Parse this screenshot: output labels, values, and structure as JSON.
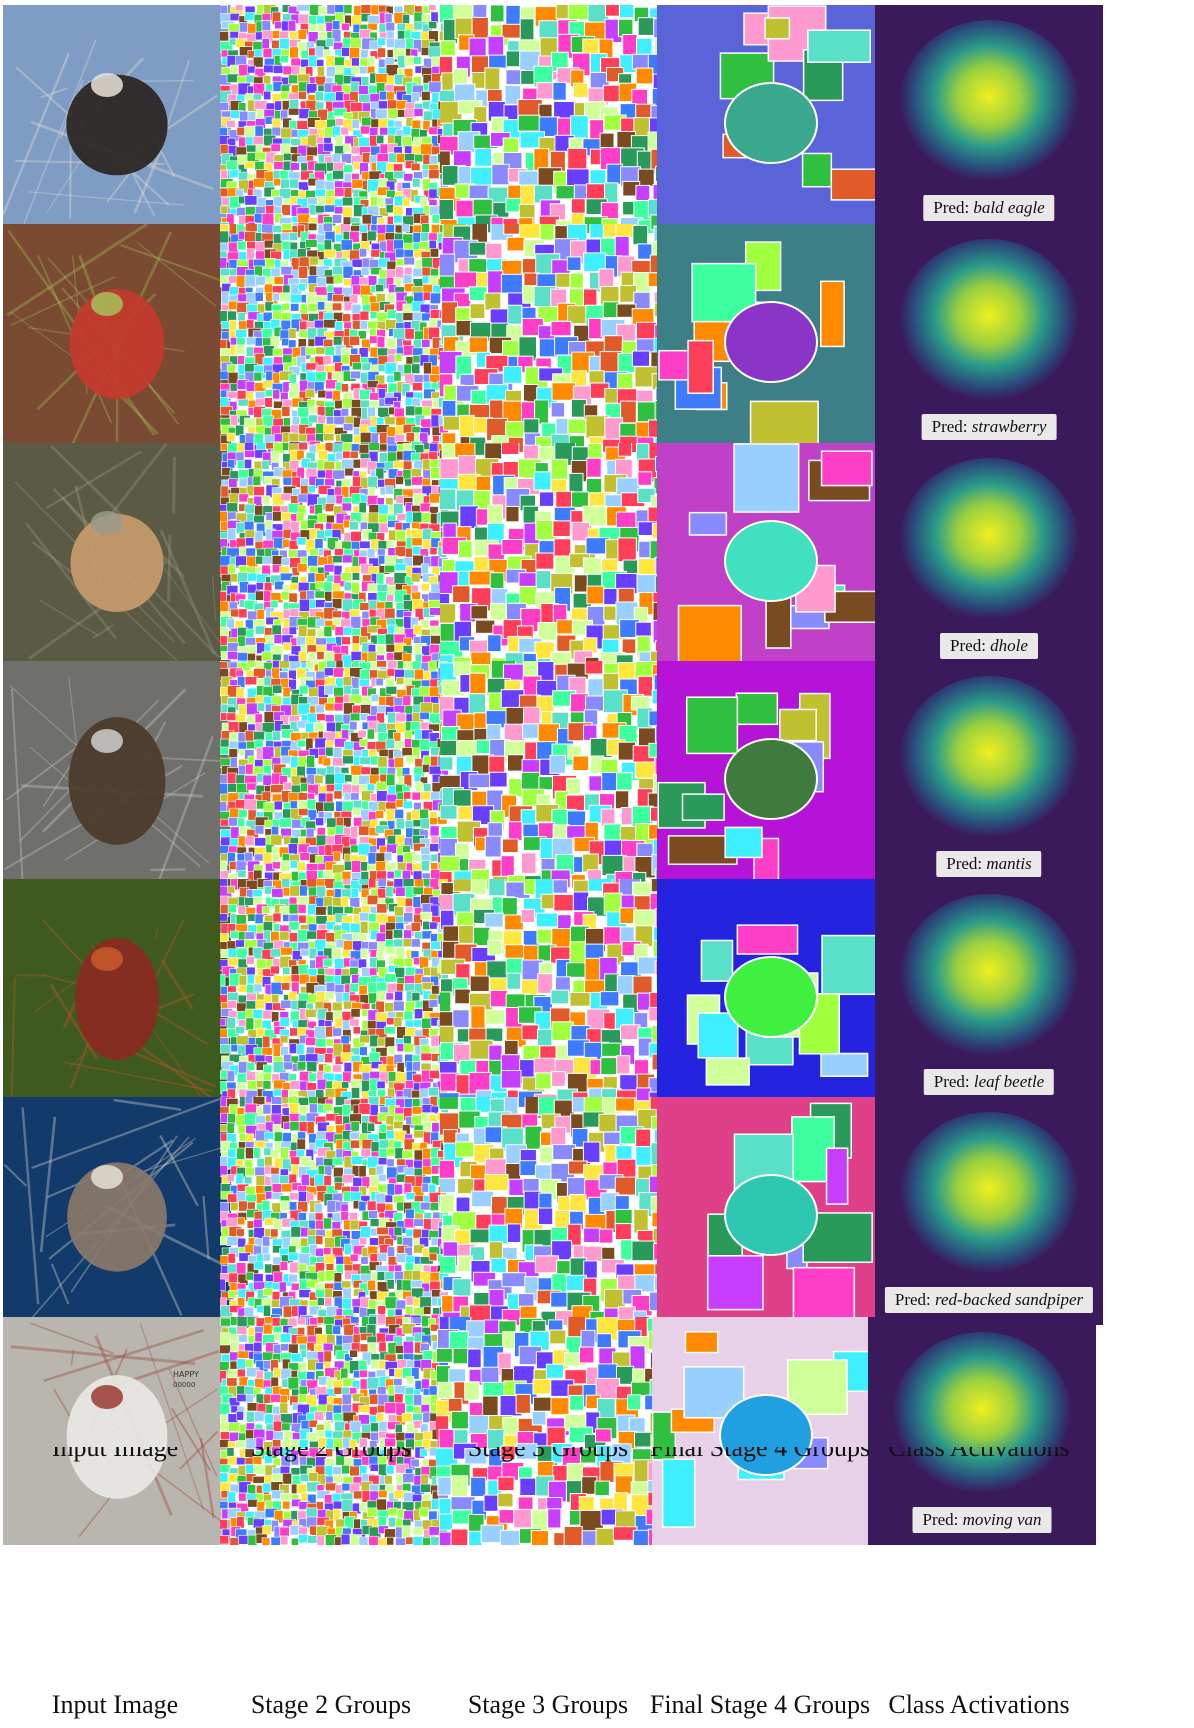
{
  "figure": {
    "columns": [
      {
        "key": "input",
        "label": "Input Image"
      },
      {
        "key": "stage2",
        "label": "Stage 2 Groups"
      },
      {
        "key": "stage3",
        "label": "Stage 3 Groups"
      },
      {
        "key": "stage4",
        "label": "Final Stage 4 Groups"
      },
      {
        "key": "activation",
        "label": "Class Activations"
      }
    ],
    "rows": [
      {
        "subject": "bald eagle",
        "pred_prefix": "Pred:",
        "pred": "bald eagle",
        "palette": {
          "bg": "#7f9cc4",
          "fg": "#2a2420",
          "accent": "#e8e4da"
        },
        "seg4": {
          "bg": "#5a63d8",
          "obj": "#3aa88c"
        }
      },
      {
        "subject": "strawberry",
        "pred_prefix": "Pred:",
        "pred": "strawberry",
        "palette": {
          "bg": "#7a4a33",
          "fg": "#c33a2c",
          "accent": "#a6c35a"
        },
        "seg4": {
          "bg": "#3d7f86",
          "obj": "#8a35c8"
        }
      },
      {
        "subject": "dhole",
        "pred_prefix": "Pred:",
        "pred": "dhole",
        "palette": {
          "bg": "#5b5a44",
          "fg": "#c89b6c",
          "accent": "#9a9a8a"
        },
        "seg4": {
          "bg": "#c040c8",
          "obj": "#40e0c0"
        }
      },
      {
        "subject": "mantis",
        "pred_prefix": "Pred:",
        "pred": "mantis",
        "palette": {
          "bg": "#6f6f6c",
          "fg": "#4a3a2a",
          "accent": "#cfcfcc"
        },
        "seg4": {
          "bg": "#b514d8",
          "obj": "#3f7a3f"
        }
      },
      {
        "subject": "leaf beetle",
        "pred_prefix": "Pred:",
        "pred": "leaf beetle",
        "palette": {
          "bg": "#3f5a1e",
          "fg": "#8a2a22",
          "accent": "#c8582a"
        },
        "seg4": {
          "bg": "#2424e0",
          "obj": "#40f040"
        }
      },
      {
        "subject": "red-backed sandpiper",
        "pred_prefix": "Pred:",
        "pred": "red-backed sandpiper",
        "palette": {
          "bg": "#123a6a",
          "fg": "#8a7a6a",
          "accent": "#e6e0d4"
        },
        "seg4": {
          "bg": "#e0408a",
          "obj": "#2ec8b0"
        }
      },
      {
        "subject": "moving van",
        "pred_prefix": "Pred:",
        "pred": "moving van",
        "palette": {
          "bg": "#b8b6ae",
          "fg": "#e8e8e4",
          "accent": "#9a3a30"
        },
        "seg4": {
          "bg": "#e8d0e8",
          "obj": "#20a0e0"
        }
      }
    ],
    "truck_label": {
      "line1": "HAPPY",
      "line2": "00000"
    }
  }
}
